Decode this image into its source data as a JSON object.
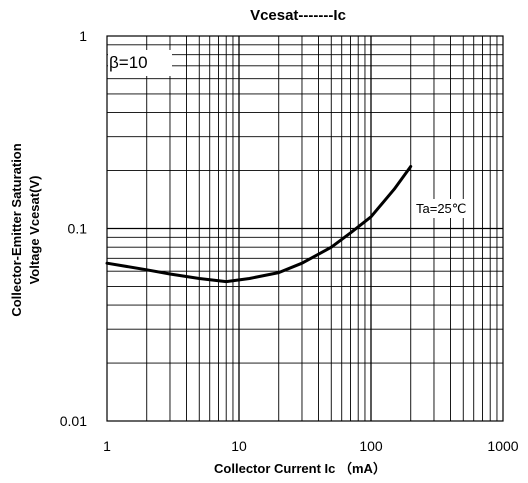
{
  "chart_data": {
    "type": "line",
    "title": "Vcesat-------Ic",
    "xlabel": "Collector Current Ic （mA）",
    "ylabel_line1": "Collector-Emitter Saturation",
    "ylabel_line2": "Voltage Vcesat(V)",
    "x_scale": "log",
    "y_scale": "log",
    "xlim": [
      1,
      1000
    ],
    "ylim": [
      0.01,
      1
    ],
    "x_ticks": [
      "1",
      "10",
      "100",
      "1000"
    ],
    "y_ticks": [
      "1",
      "0.1",
      "0.01"
    ],
    "grid": true,
    "annotations": {
      "beta": "β=10",
      "temperature": "Ta=25℃"
    },
    "series": [
      {
        "x": [
          1,
          2,
          3,
          5,
          8,
          12,
          20,
          30,
          50,
          70,
          100,
          150,
          200
        ],
        "y": [
          0.066,
          0.061,
          0.058,
          0.055,
          0.053,
          0.055,
          0.059,
          0.066,
          0.08,
          0.095,
          0.115,
          0.16,
          0.21
        ]
      }
    ]
  }
}
